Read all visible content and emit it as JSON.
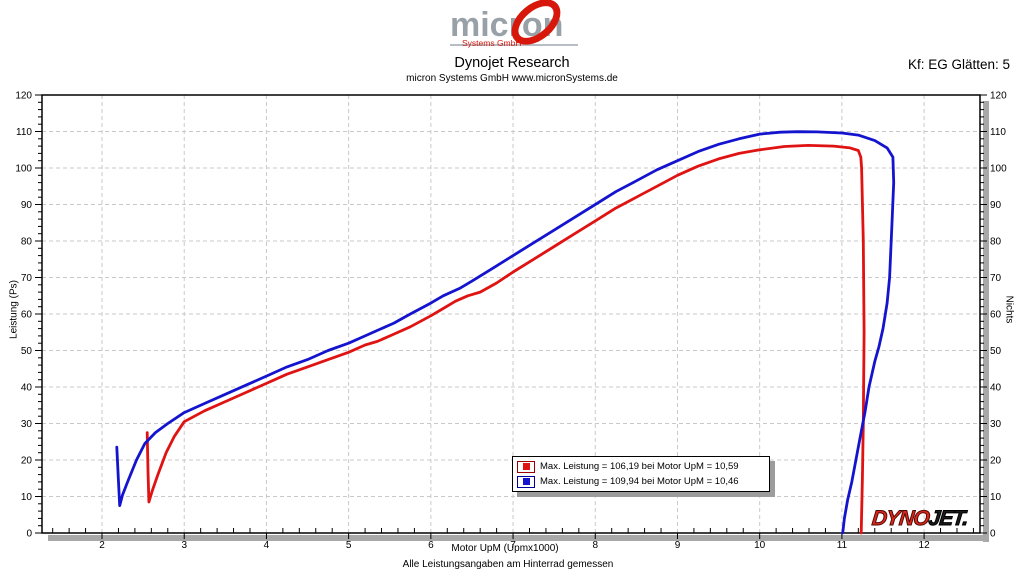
{
  "header": {
    "logo_word": "micron",
    "logo_sub": "Systems GmbH",
    "title": "Dynojet Research",
    "subtitle": "micron Systems GmbH  www.micronSystems.de",
    "right_note": "Kf: EG Glätten: 5"
  },
  "footer": {
    "note": "Alle Leistungsangaben am Hinterrad gemessen"
  },
  "watermark": {
    "dyno": "DYNO",
    "jet": "JET."
  },
  "chart_data": {
    "type": "line",
    "title": "",
    "xlabel": "Motor UpM (Upmx1000)",
    "ylabel_left": "Leistung (Ps)",
    "ylabel_right": "Nichts",
    "xlim": [
      1.27,
      12.68
    ],
    "ylim": [
      0,
      120
    ],
    "x_ticks": [
      2,
      3,
      4,
      5,
      6,
      7,
      8,
      9,
      10,
      11,
      12
    ],
    "x_minor_step": 0.2,
    "y_ticks": [
      0,
      10,
      20,
      30,
      40,
      50,
      60,
      70,
      80,
      90,
      100,
      110,
      120
    ],
    "y_minor_step": 2,
    "grid": "dashed",
    "grid_color": "#c9c9c9",
    "shadow_color": "#a8a8a8",
    "legend_position": "bottom-center",
    "legend": {
      "entries": [
        {
          "series": "red-run",
          "color": "#e01313",
          "border": "#9b0000",
          "label": "Max. Leistung = 106,19 bei Motor UpM = 10,59"
        },
        {
          "series": "blue-run",
          "color": "#1414cf",
          "border": "#000098",
          "label": "Max. Leistung = 109,94 bei Motor UpM = 10,46"
        }
      ]
    },
    "series": [
      {
        "name": "red-run",
        "color": "#e01313",
        "max_power_ps": 106.19,
        "max_power_rpm_x1000": 10.59,
        "points": [
          [
            2.55,
            27.5
          ],
          [
            2.56,
            17
          ],
          [
            2.57,
            8.5
          ],
          [
            2.61,
            11.5
          ],
          [
            2.68,
            16
          ],
          [
            2.78,
            22
          ],
          [
            2.88,
            26.5
          ],
          [
            3.0,
            30.5
          ],
          [
            3.25,
            33.5
          ],
          [
            3.5,
            36
          ],
          [
            3.75,
            38.5
          ],
          [
            4.0,
            41
          ],
          [
            4.25,
            43.5
          ],
          [
            4.5,
            45.5
          ],
          [
            4.75,
            47.5
          ],
          [
            5.0,
            49.5
          ],
          [
            5.2,
            51.5
          ],
          [
            5.35,
            52.5
          ],
          [
            5.55,
            54.5
          ],
          [
            5.75,
            56.5
          ],
          [
            6.0,
            59.5
          ],
          [
            6.15,
            61.5
          ],
          [
            6.3,
            63.5
          ],
          [
            6.45,
            65
          ],
          [
            6.6,
            66
          ],
          [
            6.8,
            68.5
          ],
          [
            7.0,
            71.5
          ],
          [
            7.25,
            75
          ],
          [
            7.5,
            78.5
          ],
          [
            7.75,
            82
          ],
          [
            8.0,
            85.5
          ],
          [
            8.25,
            89
          ],
          [
            8.5,
            92
          ],
          [
            8.75,
            95
          ],
          [
            9.0,
            98
          ],
          [
            9.25,
            100.5
          ],
          [
            9.5,
            102.5
          ],
          [
            9.75,
            104
          ],
          [
            10.0,
            105
          ],
          [
            10.3,
            105.9
          ],
          [
            10.59,
            106.19
          ],
          [
            10.9,
            106
          ],
          [
            11.1,
            105.5
          ],
          [
            11.2,
            104.8
          ],
          [
            11.23,
            103
          ],
          [
            11.24,
            100
          ],
          [
            11.26,
            80
          ],
          [
            11.27,
            55
          ],
          [
            11.26,
            30
          ],
          [
            11.25,
            15
          ],
          [
            11.24,
            5
          ],
          [
            11.235,
            0
          ]
        ]
      },
      {
        "name": "blue-run",
        "color": "#1414cf",
        "max_power_ps": 109.94,
        "max_power_rpm_x1000": 10.46,
        "points": [
          [
            2.18,
            23.5
          ],
          [
            2.2,
            14
          ],
          [
            2.215,
            7.5
          ],
          [
            2.25,
            10.5
          ],
          [
            2.32,
            14.5
          ],
          [
            2.42,
            20
          ],
          [
            2.52,
            24.5
          ],
          [
            2.65,
            27.5
          ],
          [
            2.8,
            30
          ],
          [
            3.0,
            33
          ],
          [
            3.25,
            35.5
          ],
          [
            3.5,
            38
          ],
          [
            3.75,
            40.5
          ],
          [
            4.0,
            43
          ],
          [
            4.25,
            45.5
          ],
          [
            4.5,
            47.5
          ],
          [
            4.75,
            50
          ],
          [
            5.0,
            52
          ],
          [
            5.2,
            54
          ],
          [
            5.35,
            55.5
          ],
          [
            5.55,
            57.5
          ],
          [
            5.75,
            60
          ],
          [
            6.0,
            63
          ],
          [
            6.15,
            65
          ],
          [
            6.35,
            67
          ],
          [
            6.5,
            69
          ],
          [
            6.75,
            72.5
          ],
          [
            7.0,
            76
          ],
          [
            7.25,
            79.5
          ],
          [
            7.5,
            83
          ],
          [
            7.75,
            86.5
          ],
          [
            8.0,
            90
          ],
          [
            8.25,
            93.5
          ],
          [
            8.5,
            96.5
          ],
          [
            8.75,
            99.5
          ],
          [
            9.0,
            102
          ],
          [
            9.25,
            104.5
          ],
          [
            9.5,
            106.5
          ],
          [
            9.75,
            108
          ],
          [
            10.0,
            109.3
          ],
          [
            10.25,
            109.8
          ],
          [
            10.46,
            109.94
          ],
          [
            10.7,
            109.9
          ],
          [
            11.0,
            109.6
          ],
          [
            11.2,
            109
          ],
          [
            11.4,
            107.5
          ],
          [
            11.55,
            105.5
          ],
          [
            11.62,
            103
          ],
          [
            11.63,
            96
          ],
          [
            11.61,
            85
          ],
          [
            11.58,
            70
          ],
          [
            11.55,
            63
          ],
          [
            11.5,
            56
          ],
          [
            11.45,
            51
          ],
          [
            11.4,
            47
          ],
          [
            11.33,
            40
          ],
          [
            11.28,
            33
          ],
          [
            11.22,
            26
          ],
          [
            11.17,
            20
          ],
          [
            11.12,
            14
          ],
          [
            11.07,
            9
          ],
          [
            11.03,
            4
          ],
          [
            11.01,
            0
          ]
        ]
      }
    ]
  }
}
